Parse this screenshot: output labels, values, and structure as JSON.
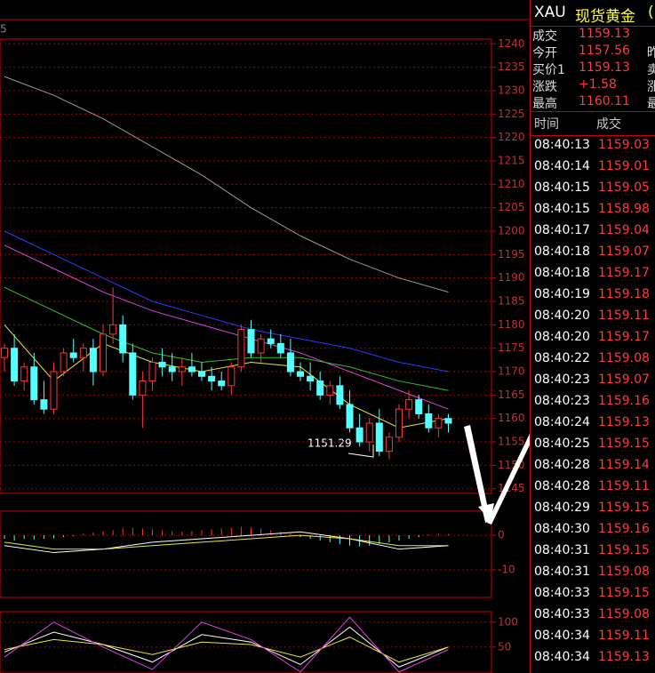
{
  "chart_data": {
    "type": "candlestick",
    "corner_label": "5",
    "annotation": "1151.29",
    "ylim": [
      1144,
      1241
    ],
    "yticks": [
      1145,
      1150,
      1155,
      1160,
      1165,
      1170,
      1175,
      1180,
      1185,
      1190,
      1195,
      1200,
      1205,
      1210,
      1215,
      1220,
      1225,
      1230,
      1235,
      1240
    ],
    "up_color": "#ff3232",
    "down_color": "#54ffff",
    "ohlc": [
      [
        1173,
        1176,
        1170,
        1175
      ],
      [
        1175,
        1178,
        1167,
        1168
      ],
      [
        1168,
        1172,
        1166,
        1171
      ],
      [
        1171,
        1174,
        1163,
        1164
      ],
      [
        1164,
        1168,
        1161,
        1162
      ],
      [
        1162,
        1172,
        1161,
        1170
      ],
      [
        1170,
        1175,
        1169,
        1174
      ],
      [
        1174,
        1177,
        1172,
        1173
      ],
      [
        1173,
        1176,
        1170,
        1175
      ],
      [
        1175,
        1177,
        1167,
        1170
      ],
      [
        1170,
        1180,
        1169,
        1178
      ],
      [
        1178,
        1188,
        1176,
        1180
      ],
      [
        1180,
        1182,
        1172,
        1174
      ],
      [
        1174,
        1176,
        1164,
        1165
      ],
      [
        1165,
        1170,
        1158,
        1168
      ],
      [
        1168,
        1173,
        1166,
        1172
      ],
      [
        1172,
        1175,
        1169,
        1171
      ],
      [
        1171,
        1174,
        1168,
        1170
      ],
      [
        1170,
        1173,
        1167,
        1171
      ],
      [
        1171,
        1174,
        1169,
        1170
      ],
      [
        1170,
        1172,
        1168,
        1169
      ],
      [
        1169,
        1171,
        1166,
        1168
      ],
      [
        1168,
        1170,
        1166,
        1167
      ],
      [
        1167,
        1172,
        1165,
        1171
      ],
      [
        1171,
        1180,
        1170,
        1179
      ],
      [
        1179,
        1181,
        1173,
        1174
      ],
      [
        1174,
        1178,
        1172,
        1177
      ],
      [
        1177,
        1179,
        1175,
        1176
      ],
      [
        1176,
        1178,
        1173,
        1174
      ],
      [
        1174,
        1177,
        1169,
        1170
      ],
      [
        1170,
        1172,
        1168,
        1169
      ],
      [
        1169,
        1172,
        1166,
        1168
      ],
      [
        1168,
        1170,
        1164,
        1165
      ],
      [
        1165,
        1168,
        1163,
        1167
      ],
      [
        1167,
        1169,
        1162,
        1163
      ],
      [
        1163,
        1166,
        1157,
        1158
      ],
      [
        1158,
        1161,
        1154,
        1155
      ],
      [
        1155,
        1160,
        1153,
        1159
      ],
      [
        1159,
        1162,
        1152,
        1153
      ],
      [
        1153,
        1157,
        1151.29,
        1156
      ],
      [
        1156,
        1163,
        1155,
        1162
      ],
      [
        1162,
        1166,
        1160,
        1164
      ],
      [
        1164,
        1165,
        1160,
        1161
      ],
      [
        1161,
        1163,
        1157,
        1158
      ],
      [
        1158,
        1161,
        1156,
        1160
      ],
      [
        1160,
        1161,
        1157,
        1159
      ]
    ],
    "ma_x": [
      0,
      5,
      10,
      15,
      20,
      25,
      30,
      35,
      40,
      45
    ],
    "ma_series": [
      {
        "color": "#9a9a9a",
        "values": [
          1233,
          1229,
          1224,
          1218,
          1212,
          1205,
          1199,
          1194,
          1190,
          1187
        ]
      },
      {
        "color": "#2b3cff",
        "values": [
          1200,
          1195,
          1190,
          1185,
          1182,
          1179,
          1177,
          1175,
          1172,
          1170
        ]
      },
      {
        "color": "#e040e0",
        "values": [
          1197,
          1192,
          1187,
          1183,
          1180,
          1177,
          1174,
          1170,
          1166,
          1162
        ]
      },
      {
        "color": "#30c030",
        "values": [
          1188,
          1183,
          1178,
          1174,
          1172,
          1173,
          1173,
          1171,
          1168,
          1166
        ]
      },
      {
        "color": "#e6e640",
        "values": [
          1180,
          1168,
          1176,
          1172,
          1170,
          1172,
          1171,
          1163,
          1158,
          1160
        ]
      }
    ],
    "macd": {
      "ylim": [
        -18,
        7
      ],
      "yticks": [
        0,
        -10
      ],
      "hist": [
        -1,
        -1.5,
        -1,
        -1.2,
        -1,
        -0.8,
        -0.5,
        -0.3,
        0.5,
        0.8,
        1.2,
        1.5,
        2,
        2.2,
        2,
        1.8,
        1.5,
        1.2,
        1,
        1.2,
        1.5,
        1.8,
        2,
        2.2,
        2.5,
        2.3,
        2,
        1.5,
        1,
        0.5,
        -0.5,
        -1,
        -1.5,
        -2,
        -2.5,
        -3,
        -3.2,
        -3,
        -2.5,
        -2,
        -1.5,
        -1,
        -0.5,
        0.3,
        0.5,
        0.4
      ],
      "lines": [
        {
          "color": "#ffffff",
          "values": [
            -3,
            -5,
            -4,
            -2,
            -1,
            0,
            1,
            -1,
            -4,
            -3
          ]
        },
        {
          "color": "#e6e640",
          "values": [
            -2,
            -4,
            -4,
            -3,
            -2,
            -1,
            0,
            -1,
            -3,
            -3
          ]
        }
      ]
    },
    "kdj": {
      "ylim": [
        -2,
        121
      ],
      "yticks": [
        100,
        50
      ],
      "lines": [
        {
          "color": "#ffffff",
          "values": [
            40,
            80,
            55,
            20,
            75,
            60,
            15,
            90,
            10,
            50
          ]
        },
        {
          "color": "#e6e640",
          "values": [
            45,
            65,
            55,
            35,
            60,
            55,
            30,
            70,
            20,
            50
          ]
        },
        {
          "color": "#e040e0",
          "values": [
            30,
            100,
            50,
            5,
            100,
            65,
            0,
            110,
            0,
            45
          ]
        }
      ]
    }
  },
  "quote": {
    "symbol": "XAU",
    "name": "现货黄金",
    "name_tail": "(",
    "rows": [
      [
        "成交",
        "1159.13",
        ""
      ],
      [
        "今开",
        "1157.56",
        "昨"
      ],
      [
        "买价1",
        "1159.13",
        "卖"
      ],
      [
        "涨跌",
        "+1.58",
        "涨"
      ],
      [
        "最高",
        "1160.11",
        "最"
      ]
    ]
  },
  "trades": {
    "header": [
      "时间",
      "成交"
    ],
    "rows": [
      [
        "08:40:13",
        "1159.03"
      ],
      [
        "08:40:14",
        "1159.01"
      ],
      [
        "08:40:15",
        "1159.05"
      ],
      [
        "08:40:15",
        "1158.98"
      ],
      [
        "08:40:17",
        "1159.04"
      ],
      [
        "08:40:18",
        "1159.07"
      ],
      [
        "08:40:18",
        "1159.17"
      ],
      [
        "08:40:19",
        "1159.18"
      ],
      [
        "08:40:20",
        "1159.11"
      ],
      [
        "08:40:20",
        "1159.17"
      ],
      [
        "08:40:22",
        "1159.08"
      ],
      [
        "08:40:23",
        "1159.07"
      ],
      [
        "08:40:23",
        "1159.16"
      ],
      [
        "08:40:24",
        "1159.13"
      ],
      [
        "08:40:25",
        "1159.15"
      ],
      [
        "08:40:28",
        "1159.14"
      ],
      [
        "08:40:28",
        "1159.11"
      ],
      [
        "08:40:29",
        "1159.15"
      ],
      [
        "08:40:30",
        "1159.16"
      ],
      [
        "08:40:31",
        "1159.15"
      ],
      [
        "08:40:31",
        "1159.08"
      ],
      [
        "08:40:33",
        "1159.15"
      ],
      [
        "08:40:33",
        "1159.08"
      ],
      [
        "08:40:34",
        "1159.11"
      ],
      [
        "08:40:34",
        "1159.13"
      ]
    ]
  }
}
